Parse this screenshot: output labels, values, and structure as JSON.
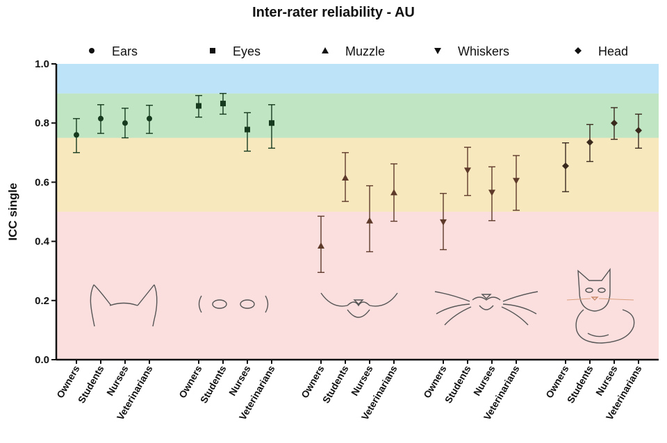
{
  "chart_data": {
    "type": "scatter",
    "title": "Inter-rater reliability - AU",
    "ylabel": "ICC single",
    "xlabel": "",
    "ylim": [
      0,
      1
    ],
    "yticks": [
      "0.0",
      "0.2",
      "0.4",
      "0.6",
      "0.8",
      "1.0"
    ],
    "categories": [
      "Owners",
      "Students",
      "Nurses",
      "Veterinarians"
    ],
    "bands": [
      {
        "from": 0.0,
        "to": 0.5,
        "color": "#fbdede"
      },
      {
        "from": 0.5,
        "to": 0.75,
        "color": "#f8e8be"
      },
      {
        "from": 0.75,
        "to": 0.9,
        "color": "#bfe5c3"
      },
      {
        "from": 0.9,
        "to": 1.0,
        "color": "#bde3f8"
      }
    ],
    "series": [
      {
        "name": "Ears",
        "marker": "circle",
        "color": "#153a1e",
        "values": [
          0.76,
          0.815,
          0.8,
          0.815
        ],
        "lower": [
          0.7,
          0.765,
          0.75,
          0.765
        ],
        "upper": [
          0.815,
          0.862,
          0.85,
          0.86
        ]
      },
      {
        "name": "Eyes",
        "marker": "square",
        "color": "#153a1e",
        "values": [
          0.858,
          0.866,
          0.778,
          0.8
        ],
        "lower": [
          0.82,
          0.83,
          0.705,
          0.715
        ],
        "upper": [
          0.893,
          0.9,
          0.835,
          0.862
        ]
      },
      {
        "name": "Muzzle",
        "marker": "triangle-up",
        "color": "#5e3a2a",
        "values": [
          0.385,
          0.615,
          0.47,
          0.565
        ],
        "lower": [
          0.295,
          0.535,
          0.365,
          0.468
        ],
        "upper": [
          0.485,
          0.7,
          0.588,
          0.662
        ]
      },
      {
        "name": "Whiskers",
        "marker": "triangle-down",
        "color": "#5e3a2a",
        "values": [
          0.465,
          0.64,
          0.565,
          0.605
        ],
        "lower": [
          0.372,
          0.555,
          0.47,
          0.505
        ],
        "upper": [
          0.562,
          0.718,
          0.652,
          0.69
        ]
      },
      {
        "name": "Head",
        "marker": "diamond",
        "color": "#3a2a1e",
        "values": [
          0.655,
          0.735,
          0.8,
          0.775
        ],
        "lower": [
          0.568,
          0.67,
          0.745,
          0.715
        ],
        "upper": [
          0.733,
          0.795,
          0.852,
          0.83
        ]
      }
    ],
    "legend_position": "top",
    "grid": false
  }
}
